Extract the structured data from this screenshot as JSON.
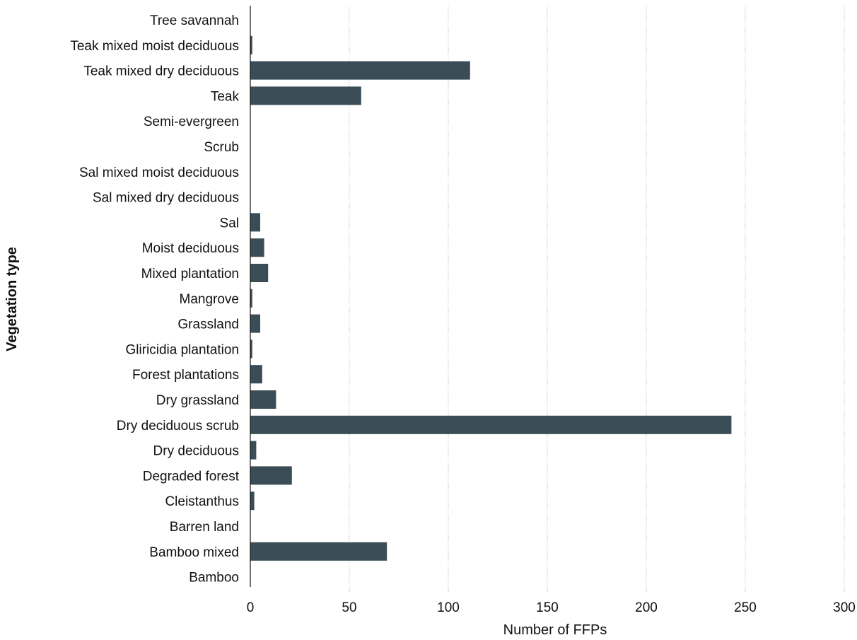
{
  "chart_data": {
    "type": "bar",
    "orientation": "horizontal",
    "title": "",
    "xlabel": "Number of FFPs",
    "ylabel": "Vegetation type",
    "xlim": [
      0,
      300
    ],
    "xticks": [
      "0",
      "50",
      "100",
      "150",
      "200",
      "250",
      "300"
    ],
    "xtick_values": [
      0,
      50,
      100,
      150,
      200,
      250,
      300
    ],
    "grid": "vertical dotted",
    "bar_color": "#3a4d57",
    "categories": [
      "Tree savannah",
      "Teak mixed moist deciduous",
      "Teak mixed dry deciduous",
      "Teak",
      "Semi-evergreen",
      "Scrub",
      "Sal mixed moist deciduous",
      "Sal mixed dry deciduous",
      "Sal",
      "Moist deciduous",
      "Mixed plantation",
      "Mangrove",
      "Grassland",
      "Gliricidia plantation",
      "Forest plantations",
      "Dry grassland",
      "Dry deciduous scrub",
      "Dry deciduous",
      "Degraded forest",
      "Cleistanthus",
      "Barren land",
      "Bamboo mixed",
      "Bamboo"
    ],
    "values": [
      0,
      1,
      111,
      56,
      0,
      0,
      0,
      0,
      5,
      7,
      9,
      1,
      5,
      1,
      6,
      13,
      243,
      3,
      21,
      2,
      0,
      69,
      0
    ]
  }
}
